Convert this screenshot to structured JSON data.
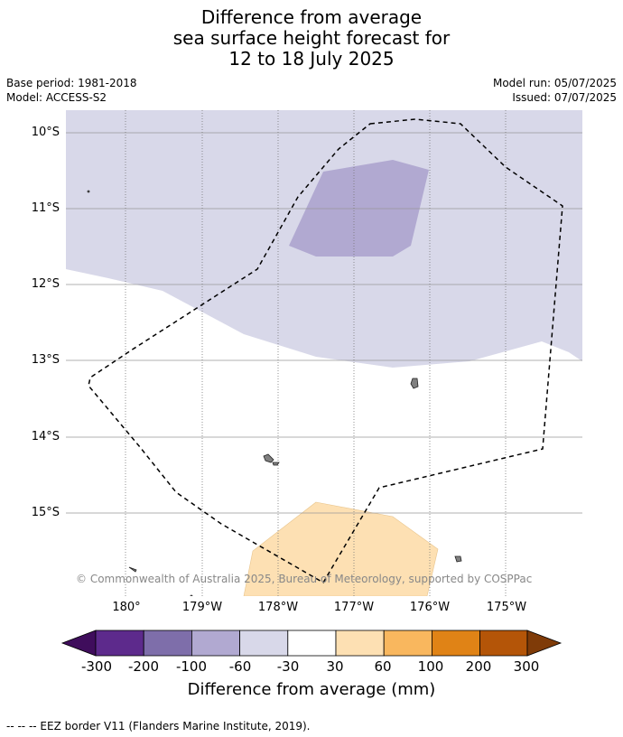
{
  "title": {
    "line1": "Difference from average",
    "line2": "sea surface height forecast for",
    "line3": "12 to 18 July 2025"
  },
  "meta": {
    "base_period": "Base period: 1981-2018",
    "model": "Model: ACCESS-S2",
    "model_run": "Model run: 05/07/2025",
    "issued": "Issued: 07/07/2025"
  },
  "map": {
    "lat_labels": [
      "10°S",
      "11°S",
      "12°S",
      "13°S",
      "14°S",
      "15°S"
    ],
    "lon_labels": [
      "180°",
      "179°W",
      "178°W",
      "177°W",
      "176°W",
      "175°W"
    ],
    "copyright": "© Commonwealth of Australia 2025, Bureau of Meteorology, supported by COSPPac",
    "colors": {
      "band_-60_-30": "#d8d8e9",
      "band_-100_-60": "#b1a9d1",
      "band_30_60": "#fde0b3",
      "land": "#808080",
      "eez": "#000000"
    }
  },
  "colorbar": {
    "tick_labels": [
      "-300",
      "-200",
      "-100",
      "-60",
      "-30",
      "30",
      "60",
      "100",
      "200",
      "300"
    ],
    "colors": [
      "#3f0d5c",
      "#5d2a8c",
      "#7e6eaa",
      "#b1a9d1",
      "#d8d8e9",
      "#ffffff",
      "#fde0b3",
      "#f9b75e",
      "#e08316",
      "#b45508",
      "#7f3b08"
    ],
    "title": "Difference from average (mm)"
  },
  "footnote": "--  --  -- EEZ border V11 (Flanders Marine Institute, 2019)."
}
